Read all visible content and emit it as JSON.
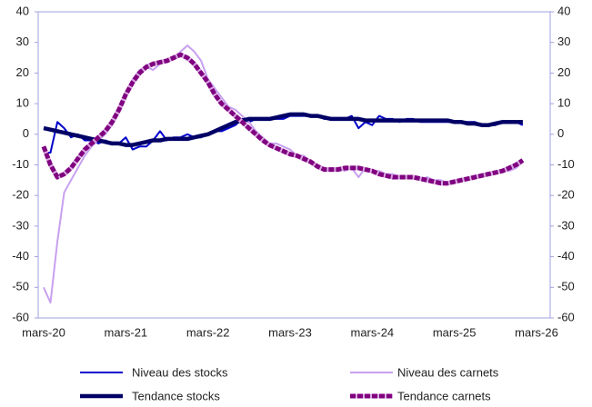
{
  "chart_data": {
    "type": "line",
    "categories": [
      "mars-20",
      null,
      null,
      null,
      null,
      null,
      null,
      null,
      null,
      null,
      null,
      null,
      "mars-21",
      null,
      null,
      null,
      null,
      null,
      null,
      null,
      null,
      null,
      null,
      null,
      "mars-22",
      null,
      null,
      null,
      null,
      null,
      null,
      null,
      null,
      null,
      null,
      null,
      "mars-23",
      null,
      null,
      null,
      null,
      null,
      null,
      null,
      null,
      null,
      null,
      null,
      "mars-24",
      null,
      null,
      null,
      null,
      null,
      null,
      null,
      null,
      null,
      null,
      null,
      "mars-25",
      null,
      null,
      null,
      null,
      null,
      null,
      null,
      null,
      null,
      null,
      null,
      "mars-26"
    ],
    "series": [
      {
        "name": "Niveau des stocks",
        "color": "#0000cc",
        "width": 2,
        "values": [
          -6,
          -6,
          4,
          2,
          -1,
          0,
          -2,
          -2,
          -3,
          -2,
          -3,
          -3,
          -1,
          -5,
          -4,
          -4,
          -2,
          1,
          -2,
          -1,
          -1,
          0,
          -1,
          -1,
          0,
          1,
          1,
          2,
          3,
          5,
          4,
          5,
          5,
          5,
          5,
          5,
          6,
          6,
          6,
          6,
          6,
          5,
          5,
          5,
          5,
          6,
          2,
          4,
          3,
          6,
          5,
          5,
          4,
          5,
          5,
          4,
          4,
          4,
          4,
          4,
          4,
          4,
          4,
          4,
          3,
          3,
          3,
          4,
          4,
          4,
          3,
          null,
          null
        ]
      },
      {
        "name": "Niveau des carnets",
        "color": "#c8a0f0",
        "width": 2,
        "values": [
          -50,
          -55,
          -35,
          -19,
          -15,
          -11,
          -7,
          -4,
          -2,
          0,
          3,
          7,
          13,
          18,
          21,
          22,
          21,
          23,
          24,
          25,
          27,
          29,
          27,
          24,
          18,
          15,
          12,
          9,
          8,
          6,
          4,
          1,
          -1,
          -3,
          -3,
          -4,
          -5,
          -7,
          -7,
          -9,
          -10,
          -11,
          -12,
          -11,
          -12,
          -11,
          -14,
          -11,
          -12,
          -12,
          -13,
          -13,
          -14,
          -14,
          -14,
          -15,
          -14,
          -15,
          -15,
          -16,
          -15,
          -15,
          -14,
          -14,
          -13,
          -13,
          -13,
          -12,
          -12,
          -11,
          -9,
          null,
          null
        ]
      },
      {
        "name": "Tendance stocks",
        "color": "#000066",
        "width": 4.5,
        "values": [
          2,
          1.5,
          1,
          0.5,
          0,
          -0.5,
          -1,
          -1.5,
          -2,
          -2.5,
          -3,
          -3,
          -3.5,
          -3.5,
          -3,
          -2.5,
          -2,
          -2,
          -1.5,
          -1.5,
          -1.5,
          -1.5,
          -1,
          -0.5,
          0,
          1,
          2,
          3,
          4,
          4.5,
          5,
          5,
          5,
          5,
          5.5,
          6,
          6.5,
          6.5,
          6.5,
          6,
          6,
          5.5,
          5,
          5,
          5,
          5,
          5,
          4.5,
          4.5,
          4.5,
          4.5,
          4.5,
          4.5,
          4.5,
          4.5,
          4.5,
          4.5,
          4.5,
          4.5,
          4.5,
          4,
          4,
          3.5,
          3.5,
          3,
          3,
          3.5,
          4,
          4,
          4,
          4,
          null,
          null
        ]
      },
      {
        "name": "Tendance carnets",
        "color": "#800080",
        "width": 5,
        "dashed": true,
        "values": [
          -4,
          -10,
          -14,
          -13,
          -11,
          -8,
          -5,
          -3,
          -1,
          1,
          4,
          8,
          13,
          17,
          20,
          22,
          23,
          23.5,
          24,
          25,
          26,
          25,
          23,
          20,
          17,
          13,
          10,
          8,
          6,
          4,
          2,
          0,
          -2,
          -3.5,
          -4.5,
          -5.5,
          -6.5,
          -7,
          -8,
          -9,
          -10.5,
          -11.5,
          -11.5,
          -11.5,
          -11,
          -11,
          -11,
          -11.5,
          -12,
          -13,
          -13.5,
          -14,
          -14,
          -14,
          -14,
          -14.5,
          -15,
          -15.5,
          -16,
          -16,
          -15.5,
          -15,
          -14.5,
          -14,
          -13.5,
          -13,
          -12.5,
          -12,
          -11,
          -10,
          -8.5,
          null,
          null
        ]
      }
    ],
    "ylim": [
      -60,
      40
    ],
    "yticks": [
      -60,
      -50,
      -40,
      -30,
      -20,
      -10,
      0,
      10,
      20,
      30,
      40
    ],
    "y2lim": [
      -60,
      40
    ],
    "y2ticks": [
      -60,
      -50,
      -40,
      -30,
      -20,
      -10,
      0,
      10,
      20,
      30,
      40
    ],
    "grid": false,
    "legend": "bottom"
  }
}
